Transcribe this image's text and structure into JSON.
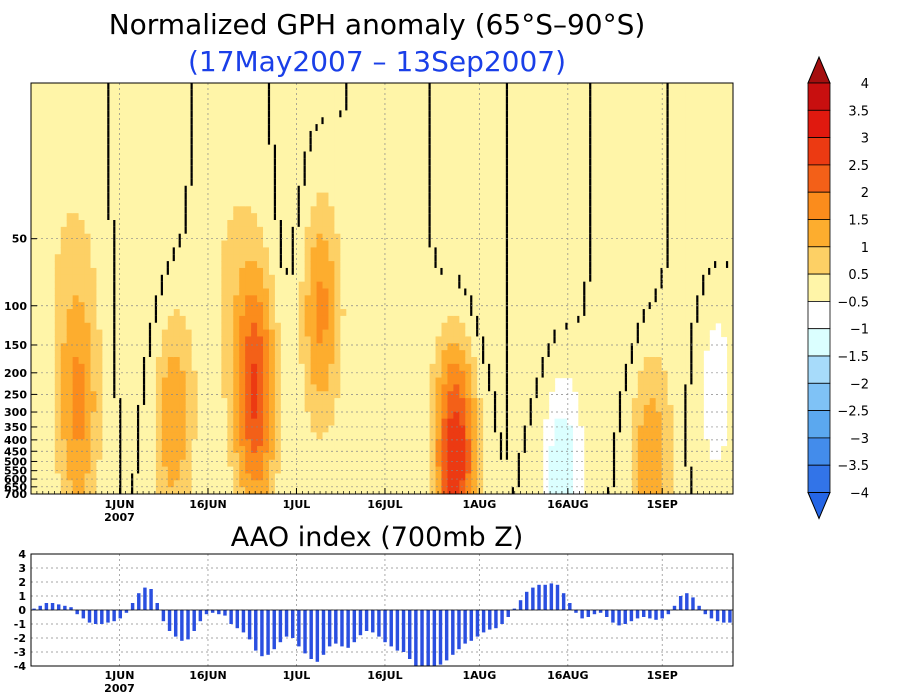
{
  "chart_data": [
    {
      "type": "heatmap",
      "title": "Normalized GPH anomaly (65°S–90°S)",
      "subtitle": "(17May2007 – 13Sep2007)",
      "x_range": [
        "2007-05-17",
        "2007-09-13"
      ],
      "x_ticks": [
        {
          "date": "2007-06-01",
          "label": "1JUN",
          "sublabel": "2007"
        },
        {
          "date": "2007-06-16",
          "label": "16JUN",
          "sublabel": ""
        },
        {
          "date": "2007-07-01",
          "label": "1JUL",
          "sublabel": ""
        },
        {
          "date": "2007-07-16",
          "label": "16JUL",
          "sublabel": ""
        },
        {
          "date": "2007-08-01",
          "label": "1AUG",
          "sublabel": ""
        },
        {
          "date": "2007-08-16",
          "label": "16AUG",
          "sublabel": ""
        },
        {
          "date": "2007-09-01",
          "label": "1SEP",
          "sublabel": ""
        }
      ],
      "y_scale": "log-pressure",
      "y_range_mb": [
        700,
        10
      ],
      "y_ticks": [
        "50",
        "100",
        "150",
        "200",
        "250",
        "300",
        "350",
        "400",
        "450",
        "500",
        "550",
        "600",
        "650",
        "700"
      ],
      "colorbar": {
        "labels": [
          "4",
          "3.5",
          "3",
          "2.5",
          "2",
          "1.5",
          "1",
          "0.5",
          "−0.5",
          "−1",
          "−1.5",
          "−2",
          "−2.5",
          "−3",
          "−3.5",
          "−4"
        ],
        "colors": [
          "#a50f0f",
          "#c80f0f",
          "#e0190f",
          "#ec3a12",
          "#f36018",
          "#fb8c1c",
          "#fdad2e",
          "#fdd065",
          "#fff5a8",
          "#ffffff",
          "#dbffff",
          "#a7dbfa",
          "#7fc2f6",
          "#5ba8ef",
          "#438ceb",
          "#3274e8",
          "#2566e6"
        ]
      },
      "anomaly_peaks": [
        {
          "date": "2007-05-25",
          "level_mb": 300,
          "value": 1.5
        },
        {
          "date": "2007-06-10",
          "level_mb": 300,
          "value": 1.5
        },
        {
          "date": "2007-06-24",
          "level_mb": 250,
          "value": 2.5
        },
        {
          "date": "2007-07-05",
          "level_mb": 100,
          "value": 2.0
        },
        {
          "date": "2007-07-28",
          "level_mb": 450,
          "value": 3.0
        },
        {
          "date": "2007-08-15",
          "level_mb": 600,
          "value": -1.5
        },
        {
          "date": "2007-08-30",
          "level_mb": 500,
          "value": 1.5
        },
        {
          "date": "2007-09-10",
          "level_mb": 200,
          "value": -1.0
        }
      ]
    },
    {
      "type": "bar",
      "title": "AAO index (700mb Z)",
      "ylim": [
        -4,
        4
      ],
      "y_ticks": [
        4,
        3,
        2,
        1,
        0,
        -1,
        -2,
        -3,
        -4
      ],
      "grid": true,
      "start_date": "2007-05-17",
      "values": [
        0.1,
        0.3,
        0.5,
        0.5,
        0.4,
        0.3,
        0.2,
        -0.3,
        -0.6,
        -0.9,
        -1.0,
        -1.0,
        -0.9,
        -0.8,
        -0.6,
        -0.2,
        0.5,
        1.2,
        1.6,
        1.5,
        0.5,
        -0.8,
        -1.5,
        -1.9,
        -2.2,
        -2.1,
        -1.5,
        -0.8,
        -0.3,
        -0.2,
        -0.3,
        -0.4,
        -1.0,
        -1.3,
        -1.6,
        -2.1,
        -2.9,
        -3.3,
        -3.2,
        -2.8,
        -2.3,
        -1.9,
        -2.0,
        -2.6,
        -3.1,
        -3.5,
        -3.7,
        -3.2,
        -2.6,
        -2.4,
        -2.6,
        -2.7,
        -2.3,
        -1.8,
        -1.5,
        -1.6,
        -1.9,
        -2.3,
        -2.6,
        -2.9,
        -3.0,
        -3.5,
        -4.0,
        -4.0,
        -4.0,
        -4.0,
        -3.9,
        -3.6,
        -3.2,
        -2.8,
        -2.4,
        -2.2,
        -1.9,
        -1.6,
        -1.4,
        -1.3,
        -1.0,
        -0.5,
        0.1,
        0.7,
        1.3,
        1.6,
        1.8,
        1.8,
        1.9,
        1.8,
        1.2,
        0.5,
        -0.2,
        -0.6,
        -0.5,
        -0.3,
        -0.2,
        -0.5,
        -0.9,
        -1.1,
        -1.0,
        -0.8,
        -0.6,
        -0.5,
        -0.6,
        -0.7,
        -0.6,
        -0.3,
        0.3,
        1.0,
        1.2,
        0.9,
        0.3,
        -0.3,
        -0.6,
        -0.8,
        -0.9,
        -0.9
      ],
      "x_ticks": [
        {
          "date": "2007-06-01",
          "label": "1JUN",
          "sublabel": "2007"
        },
        {
          "date": "2007-06-16",
          "label": "16JUN",
          "sublabel": ""
        },
        {
          "date": "2007-07-01",
          "label": "1JUL",
          "sublabel": ""
        },
        {
          "date": "2007-07-16",
          "label": "16JUL",
          "sublabel": ""
        },
        {
          "date": "2007-08-01",
          "label": "1AUG",
          "sublabel": ""
        },
        {
          "date": "2007-08-16",
          "label": "16AUG",
          "sublabel": ""
        },
        {
          "date": "2007-09-01",
          "label": "1SEP",
          "sublabel": ""
        }
      ],
      "bar_color": "#2a4fe0"
    }
  ]
}
